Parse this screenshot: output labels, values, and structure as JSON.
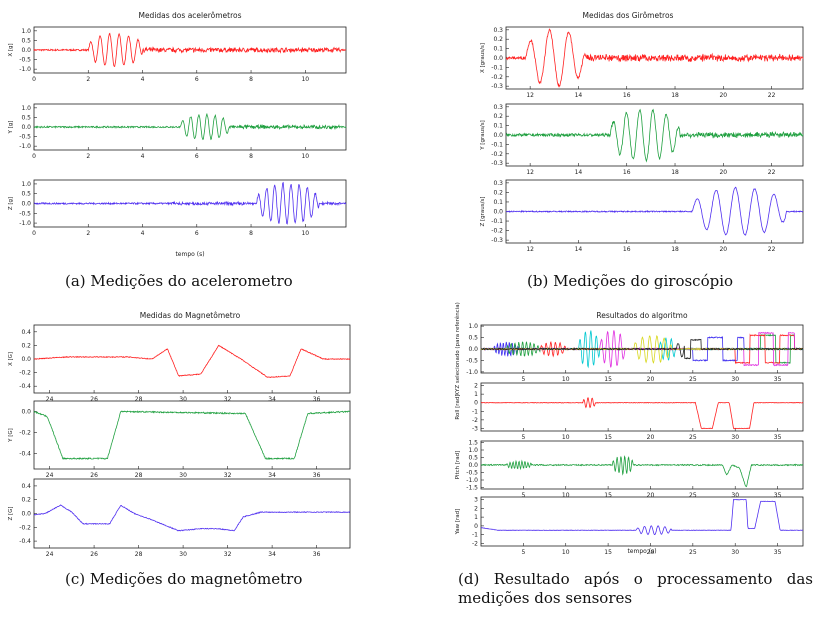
{
  "captions": {
    "a": "(a) Medições do acelerometro",
    "b": "(b) Medições do giroscópio",
    "c": "(c) Medições do magnetômetro",
    "d": "(d) Resultado após o processamento das medições dos sensores"
  },
  "chart_data": [
    {
      "id": "a",
      "type": "line",
      "title": "Medidas dos acelerômetros",
      "xlabel": "tempo (s)",
      "xlim": [
        0,
        11.5
      ],
      "panels": [
        {
          "ylabel": "X [g]",
          "color": "#ff2020",
          "ylim": [
            -1.2,
            1.2
          ],
          "yticks": [
            "1.0",
            "0.5",
            "0.0",
            "-0.5",
            "-1.0"
          ],
          "yvals": [
            1.0,
            0.5,
            0.0,
            -0.5,
            -1.0
          ],
          "xticks": [
            0,
            2,
            4,
            6,
            8,
            10
          ],
          "noise": 0.04,
          "burst": [
            {
              "from": 2.0,
              "to": 4.0,
              "amp": 0.85,
              "period": 0.35
            }
          ],
          "after": {
            "from": 4,
            "to": 11.3,
            "amp": 0.1
          }
        },
        {
          "ylabel": "Y [g]",
          "color": "#20a040",
          "ylim": [
            -1.2,
            1.2
          ],
          "yticks": [
            "1.0",
            "0.5",
            "0.0",
            "-0.5",
            "-1.0"
          ],
          "yvals": [
            1.0,
            0.5,
            0.0,
            -0.5,
            -1.0
          ],
          "xticks": [
            0,
            2,
            4,
            6,
            8,
            10
          ],
          "noise": 0.04,
          "burst": [
            {
              "from": 5.4,
              "to": 7.2,
              "amp": 0.65,
              "period": 0.3
            }
          ],
          "after": {
            "from": 7.2,
            "to": 11.3,
            "amp": 0.08
          }
        },
        {
          "ylabel": "Z [g]",
          "color": "#5030f0",
          "ylim": [
            -1.2,
            1.2
          ],
          "yticks": [
            "1.0",
            "0.5",
            "0.0",
            "-0.5",
            "-1.0"
          ],
          "yvals": [
            1.0,
            0.5,
            0.0,
            -0.5,
            -1.0
          ],
          "xticks": [
            0,
            2,
            4,
            6,
            8,
            10
          ],
          "noise": 0.04,
          "burst": [
            {
              "from": 8.2,
              "to": 10.5,
              "amp": 1.0,
              "period": 0.3
            }
          ],
          "after": {
            "from": 5,
            "to": 11.3,
            "amp": 0.06
          }
        }
      ]
    },
    {
      "id": "b",
      "type": "line",
      "title": "Medidas dos Girômetros",
      "xlabel": "",
      "xlim": [
        11,
        23.3
      ],
      "panels": [
        {
          "ylabel": "X [graus/s]",
          "color": "#ff2020",
          "ylim": [
            -0.33,
            0.33
          ],
          "yticks": [
            "0.3",
            "0.2",
            "0.1",
            "0.0",
            "-0.1",
            "-0.2",
            "-0.3"
          ],
          "yvals": [
            0.3,
            0.2,
            0.1,
            0.0,
            -0.1,
            -0.2,
            -0.3
          ],
          "xticks": [
            12,
            14,
            16,
            18,
            20,
            22
          ],
          "noise": 0.015,
          "burst": [
            {
              "from": 11.8,
              "to": 14.3,
              "amp": 0.3,
              "period": 0.8
            }
          ],
          "after": {
            "from": 14.3,
            "to": 23.2,
            "amp": 0.03
          }
        },
        {
          "ylabel": "Y [graus/s]",
          "color": "#20a040",
          "ylim": [
            -0.33,
            0.33
          ],
          "yticks": [
            "0.3",
            "0.2",
            "0.1",
            "0.0",
            "-0.1",
            "-0.2",
            "-0.3"
          ],
          "yvals": [
            0.3,
            0.2,
            0.1,
            0.0,
            -0.1,
            -0.2,
            -0.3
          ],
          "xticks": [
            12,
            14,
            16,
            18,
            20,
            22
          ],
          "noise": 0.015,
          "burst": [
            {
              "from": 15.3,
              "to": 18.2,
              "amp": 0.27,
              "period": 0.55
            }
          ],
          "after": {
            "from": 18.2,
            "to": 23.2,
            "amp": 0.02
          }
        },
        {
          "ylabel": "Z [graus/s]",
          "color": "#5030f0",
          "ylim": [
            -0.33,
            0.33
          ],
          "yticks": [
            "0.3",
            "0.2",
            "0.1",
            "0.0",
            "-0.1",
            "-0.2",
            "-0.3"
          ],
          "yvals": [
            0.3,
            0.2,
            0.1,
            0.0,
            -0.1,
            -0.2,
            -0.3
          ],
          "xticks": [
            12,
            14,
            16,
            18,
            20,
            22
          ],
          "noise": 0.006,
          "burst": [
            {
              "from": 18.7,
              "to": 22.6,
              "amp": 0.25,
              "period": 0.8
            }
          ],
          "after": {
            "from": 0,
            "to": 0,
            "amp": 0
          }
        }
      ]
    },
    {
      "id": "c",
      "type": "line",
      "title": "Medidas do Magnetômetro",
      "xlabel": "",
      "xlim": [
        23.3,
        37.5
      ],
      "panels": [
        {
          "ylabel": "X [G]",
          "color": "#ff2020",
          "ylim": [
            -0.5,
            0.5
          ],
          "yticks": [
            "0.4",
            "0.2",
            "0.0",
            "-0.2",
            "-0.4"
          ],
          "yvals": [
            0.4,
            0.2,
            0.0,
            -0.2,
            -0.4
          ],
          "xticks": [
            24,
            26,
            28,
            30,
            32,
            34,
            36
          ],
          "noise": 0.006,
          "steps": [
            [
              23.3,
              0.0
            ],
            [
              24.8,
              0.03
            ],
            [
              27.5,
              0.03
            ],
            [
              28.6,
              0.0
            ],
            [
              29.3,
              0.15
            ],
            [
              29.8,
              -0.25
            ],
            [
              30.8,
              -0.22
            ],
            [
              31.6,
              0.2
            ],
            [
              32.6,
              0.0
            ],
            [
              33.8,
              -0.27
            ],
            [
              34.8,
              -0.25
            ],
            [
              35.3,
              0.15
            ],
            [
              36.3,
              0.0
            ],
            [
              37.5,
              0.0
            ]
          ]
        },
        {
          "ylabel": "Y [G]",
          "color": "#20a040",
          "ylim": [
            -0.55,
            0.1
          ],
          "yticks": [
            "0.0",
            "-0.2",
            "-0.4"
          ],
          "yvals": [
            0.0,
            -0.2,
            -0.4
          ],
          "xticks": [
            24,
            26,
            28,
            30,
            32,
            34,
            36
          ],
          "noise": 0.006,
          "steps": [
            [
              23.3,
              0.0
            ],
            [
              23.9,
              -0.05
            ],
            [
              24.6,
              -0.45
            ],
            [
              26.6,
              -0.45
            ],
            [
              27.2,
              0.0
            ],
            [
              32.8,
              -0.02
            ],
            [
              33.7,
              -0.45
            ],
            [
              35.0,
              -0.45
            ],
            [
              35.6,
              -0.02
            ],
            [
              37.5,
              0.0
            ]
          ]
        },
        {
          "ylabel": "Z [G]",
          "color": "#5030f0",
          "ylim": [
            -0.5,
            0.5
          ],
          "yticks": [
            "0.4",
            "0.2",
            "0.0",
            "-0.2",
            "-0.4"
          ],
          "yvals": [
            0.4,
            0.2,
            0.0,
            -0.2,
            -0.4
          ],
          "xticks": [
            24,
            26,
            28,
            30,
            32,
            34,
            36
          ],
          "noise": 0.006,
          "steps": [
            [
              23.3,
              -0.02
            ],
            [
              23.8,
              0.0
            ],
            [
              24.5,
              0.12
            ],
            [
              25.0,
              0.02
            ],
            [
              25.5,
              -0.15
            ],
            [
              26.7,
              -0.15
            ],
            [
              27.2,
              0.12
            ],
            [
              27.8,
              0.0
            ],
            [
              28.5,
              -0.08
            ],
            [
              29.8,
              -0.25
            ],
            [
              30.8,
              -0.22
            ],
            [
              31.6,
              -0.22
            ],
            [
              32.3,
              -0.25
            ],
            [
              32.7,
              -0.05
            ],
            [
              33.5,
              0.02
            ],
            [
              37.5,
              0.02
            ]
          ]
        }
      ]
    },
    {
      "id": "d",
      "type": "line",
      "title": "Resultados do algoritmo",
      "xlabel": "tempo (s)",
      "xlim": [
        0,
        38
      ],
      "panels": [
        {
          "ylabel": "XYZ selecionado (para referência)",
          "colors": [
            "#4030f0",
            "#20a040",
            "#ff2020",
            "#00c8d0",
            "#e030e0",
            "#d8d820",
            "#202020"
          ],
          "ylim": [
            -1.05,
            1.05
          ],
          "yticks": [
            "1.0",
            "0.5",
            "0.0",
            "-0.5",
            "-1.0"
          ],
          "yvals": [
            1.0,
            0.5,
            0.0,
            -0.5,
            -1.0
          ],
          "xticks": [
            5,
            10,
            15,
            20,
            25,
            30,
            35
          ],
          "noise": 0.03,
          "multi": true
        },
        {
          "ylabel": "Roll [rad]",
          "color": "#ff2020",
          "ylim": [
            -3.3,
            2.3
          ],
          "yticks": [
            "2",
            "1",
            "0",
            "-1",
            "-2",
            "-3"
          ],
          "yvals": [
            2,
            1,
            0,
            -1,
            -2,
            -3
          ],
          "xticks": [
            5,
            10,
            15,
            20,
            25,
            30,
            35
          ],
          "noise": 0.03,
          "burst": [
            {
              "from": 12.0,
              "to": 13.5,
              "amp": 0.6,
              "period": 0.5
            }
          ],
          "steps": [
            [
              0,
              0
            ],
            [
              25.3,
              0
            ],
            [
              26.0,
              -3
            ],
            [
              27.3,
              -3
            ],
            [
              28.0,
              0
            ],
            [
              29.3,
              0
            ],
            [
              29.8,
              -3
            ],
            [
              31.7,
              -3
            ],
            [
              32.2,
              0
            ],
            [
              38,
              0
            ]
          ]
        },
        {
          "ylabel": "Pitch [rad]",
          "color": "#20a040",
          "ylim": [
            -1.6,
            1.6
          ],
          "yticks": [
            "1.5",
            "1.0",
            "0.5",
            "0.0",
            "-0.5",
            "-1.0",
            "-1.5"
          ],
          "yvals": [
            1.5,
            1.0,
            0.5,
            0.0,
            -0.5,
            -1.0,
            -1.5
          ],
          "xticks": [
            5,
            10,
            15,
            20,
            25,
            30,
            35
          ],
          "noise": 0.04,
          "burst": [
            {
              "from": 3.0,
              "to": 6.0,
              "amp": 0.25,
              "period": 0.35
            },
            {
              "from": 15.5,
              "to": 18.0,
              "amp": 0.6,
              "period": 0.45
            }
          ],
          "steps": [
            [
              0,
              0
            ],
            [
              28.5,
              0
            ],
            [
              29.0,
              -0.7
            ],
            [
              29.6,
              0
            ],
            [
              30.5,
              -0.2
            ],
            [
              31.3,
              -1.5
            ],
            [
              31.9,
              0
            ],
            [
              38,
              0
            ]
          ]
        },
        {
          "ylabel": "Yaw [rad]",
          "color": "#5030f0",
          "ylim": [
            -2.3,
            3.3
          ],
          "yticks": [
            "3",
            "2",
            "1",
            "0",
            "-1",
            "-2"
          ],
          "yvals": [
            3,
            2,
            1,
            0,
            -1,
            -2
          ],
          "xticks": [
            5,
            10,
            15,
            20,
            25,
            30,
            35
          ],
          "noise": 0.02,
          "burst": [
            {
              "from": 18.3,
              "to": 22.5,
              "amp": 0.5,
              "period": 0.8
            }
          ],
          "steps": [
            [
              0,
              -0.2
            ],
            [
              2,
              -0.5
            ],
            [
              29.5,
              -0.5
            ],
            [
              29.8,
              3
            ],
            [
              31.3,
              3
            ],
            [
              31.5,
              -0.3
            ],
            [
              32.3,
              -0.3
            ],
            [
              33.0,
              2.8
            ],
            [
              34.7,
              2.8
            ],
            [
              35.3,
              -0.5
            ],
            [
              38,
              -0.5
            ]
          ]
        }
      ]
    }
  ]
}
